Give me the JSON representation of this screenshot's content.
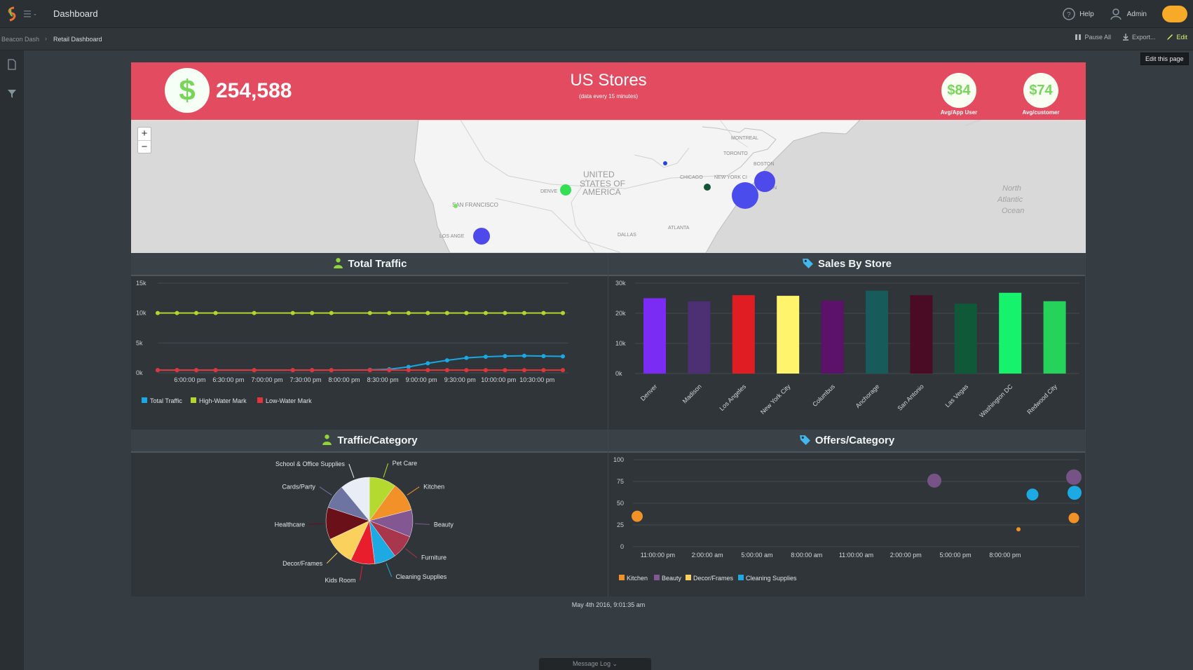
{
  "app": {
    "title": "Dashboard"
  },
  "topbar": {
    "help_label": "Help",
    "admin_label": "Admin"
  },
  "breadcrumb": {
    "items": [
      "Beacon Dash",
      "Retail Dashboard"
    ]
  },
  "actions": {
    "pause_label": "Pause All",
    "export_label": "Export...",
    "edit_label": "Edit",
    "tooltip": "Edit this page"
  },
  "hero": {
    "value": "254,588",
    "title": "US Stores",
    "subtitle": "(data every 15 minutes)",
    "metrics": [
      {
        "value": "$84",
        "label": "Avg/App User"
      },
      {
        "value": "$74",
        "label": "Avg/customer"
      }
    ],
    "colors": {
      "background": "#e24b60",
      "accent": "#78d45b"
    }
  },
  "map": {
    "labels": [
      "UNITED",
      "STATES OF",
      "AMERICA",
      "SAN FRANCISCO",
      "LOS ANGE",
      "DENVE",
      "CHICAGO",
      "MONTREAL",
      "TORONTO",
      "BOSTON",
      "NEW YORK CI",
      "INGTON",
      "ATLANTA",
      "DALLAS",
      "North",
      "Atlantic",
      "Ocean"
    ],
    "zoom_in_label": "+",
    "zoom_out_label": "−"
  },
  "panels": {
    "total_traffic": "Total Traffic",
    "sales_by_store": "Sales By Store",
    "traffic_category": "Traffic/Category",
    "offers_category": "Offers/Category"
  },
  "chart_data": [
    {
      "type": "line",
      "x": [
        "5:35:00 pm",
        "5:50:00 pm",
        "6:05:00 pm",
        "6:20:00 pm",
        "6:50:00 pm",
        "7:20:00 pm",
        "7:35:00 pm",
        "7:50:00 pm",
        "8:20:00 pm",
        "8:35:00 pm",
        "8:50:00 pm",
        "9:05:00 pm",
        "9:20:00 pm",
        "9:35:00 pm",
        "9:50:00 pm",
        "10:05:00 pm",
        "10:20:00 pm",
        "10:35:00 pm",
        "10:50:00 pm"
      ],
      "series": [
        {
          "name": "Total Traffic",
          "values": [
            450,
            450,
            450,
            450,
            450,
            450,
            450,
            450,
            500,
            600,
            1000,
            1600,
            2100,
            2500,
            2700,
            2800,
            2850,
            2800,
            2750
          ],
          "color": "#19a8e3"
        },
        {
          "name": "High-Water Mark",
          "values": [
            10000,
            10000,
            10000,
            10000,
            10000,
            10000,
            10000,
            10000,
            10000,
            10000,
            10000,
            10000,
            10000,
            10000,
            10000,
            10000,
            10000,
            10000,
            10000
          ],
          "color": "#b4d52d"
        },
        {
          "name": "Low-Water Mark",
          "values": [
            450,
            450,
            450,
            450,
            450,
            450,
            450,
            450,
            450,
            450,
            450,
            450,
            450,
            450,
            450,
            450,
            450,
            450,
            450
          ],
          "color": "#e3343b"
        }
      ],
      "x_ticks": [
        "6:00:00 pm",
        "6:30:00 pm",
        "7:00:00 pm",
        "7:30:00 pm",
        "8:00:00 pm",
        "8:30:00 pm",
        "9:00:00 pm",
        "9:30:00 pm",
        "10:00:00 pm",
        "10:30:00 pm"
      ],
      "y_ticks": [
        "15k",
        "10k",
        "5k",
        "0k"
      ],
      "ylim": [
        0,
        15000
      ],
      "legend": "bottom-left"
    },
    {
      "type": "bar",
      "categories": [
        "Denver",
        "Madison",
        "Los Angeles",
        "New York City",
        "Columbus",
        "Anchorage",
        "San Antonio",
        "Las Vegas",
        "Washington DC",
        "Redwood City"
      ],
      "values": [
        25000,
        24000,
        26000,
        25800,
        24200,
        27500,
        26000,
        23200,
        26800,
        24000
      ],
      "colors": [
        "#7b2cf4",
        "#4d2f73",
        "#e11d24",
        "#fff46b",
        "#5d1269",
        "#175c5a",
        "#4a0b24",
        "#0f5838",
        "#16f26b",
        "#25d35b"
      ],
      "y_ticks": [
        "30k",
        "20k",
        "10k",
        "0k"
      ],
      "ylim": [
        0,
        30000
      ]
    },
    {
      "type": "pie",
      "labels": [
        "Pet Care",
        "Kitchen",
        "Beauty",
        "Furniture",
        "Cleaning Supplies",
        "Kids Room",
        "Decor/Frames",
        "Healthcare",
        "Cards/Party",
        "School & Office Supplies"
      ],
      "values": [
        10,
        11,
        10,
        9,
        8,
        9,
        11,
        12,
        9,
        11
      ],
      "colors": [
        "#b4d92f",
        "#f29127",
        "#835892",
        "#a8364d",
        "#1da9e2",
        "#e81e2c",
        "#fbd15d",
        "#6a1018",
        "#6d74a2",
        "#e9edf5"
      ]
    },
    {
      "type": "scatter",
      "x_ticks": [
        "11:00:00 pm",
        "2:00:00 am",
        "5:00:00 am",
        "8:00:00 am",
        "11:00:00 am",
        "2:00:00 pm",
        "5:00:00 pm",
        "8:00:00 pm"
      ],
      "y_ticks": [
        "100",
        "75",
        "50",
        "25",
        "0"
      ],
      "ylim": [
        0,
        100
      ],
      "series": [
        {
          "name": "Kitchen",
          "color": "#f29127",
          "points": [
            {
              "x": "9:40:00 pm",
              "y": 33,
              "size": 15
            },
            {
              "x": "9:00:00 pm",
              "y": 20,
              "size": 6
            },
            {
              "x": "11:40:00 pm",
              "y": 35,
              "size": 16
            }
          ]
        },
        {
          "name": "Beauty",
          "color": "#835892",
          "points": [
            {
              "x": "2:40:00 pm",
              "y": 76,
              "size": 20
            },
            {
              "x": "11:40:00 pm",
              "y": 80,
              "size": 22
            }
          ]
        },
        {
          "name": "Decor/Frames",
          "color": "#fbd15d",
          "points": []
        },
        {
          "name": "Cleaning Supplies",
          "color": "#1da9e2",
          "points": [
            {
              "x": "9:05:00 pm",
              "y": 60,
              "size": 17
            },
            {
              "x": "11:40:00 pm",
              "y": 62,
              "size": 20
            }
          ]
        }
      ],
      "legend": "bottom-left"
    }
  ],
  "footer": {
    "date": "May 4th 2016, 9:01:35 am",
    "message_log": "Message Log ⌄"
  }
}
